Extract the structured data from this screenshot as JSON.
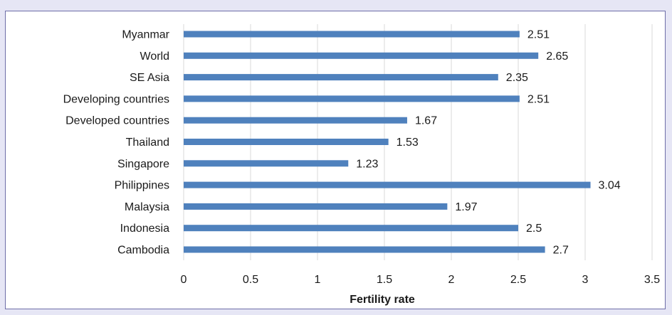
{
  "chart_data": {
    "type": "bar",
    "orientation": "horizontal",
    "categories": [
      "Myanmar",
      "World",
      "SE Asia",
      "Developing countries",
      "Developed countries",
      "Thailand",
      "Singapore",
      "Philippines",
      "Malaysia",
      "Indonesia",
      "Cambodia"
    ],
    "values": [
      2.51,
      2.65,
      2.35,
      2.51,
      1.67,
      1.53,
      1.23,
      3.04,
      1.97,
      2.5,
      2.7
    ],
    "value_labels": [
      "2.51",
      "2.65",
      "2.35",
      "2.51",
      "1.67",
      "1.53",
      "1.23",
      "3.04",
      "1.97",
      "2.5",
      "2.7"
    ],
    "xlabel": "Fertility rate",
    "ylabel": "",
    "xlim": [
      0,
      3.5
    ],
    "xticks": [
      "0",
      "0.5",
      "1",
      "1.5",
      "2",
      "2.5",
      "3",
      "3.5"
    ],
    "grid": "vertical",
    "bar_color": "#4f81bd",
    "grid_color": "#d9d9d9"
  }
}
